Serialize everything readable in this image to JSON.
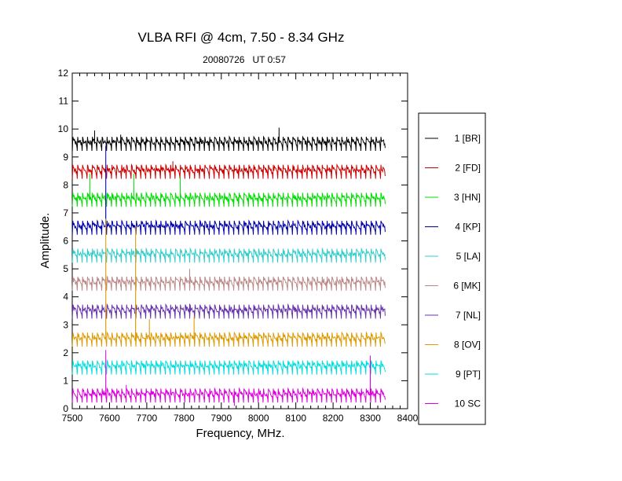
{
  "chart_data": {
    "type": "line",
    "title": "VLBA RFI @ 4cm, 7.50 - 8.34 GHz",
    "subtitle": "20080726   UT 0:57",
    "xlabel": "Frequency, MHz.",
    "ylabel": "Amplitude.",
    "xlim": [
      7500,
      8400
    ],
    "ylim": [
      0,
      12
    ],
    "xticks": [
      7500,
      7600,
      7700,
      7800,
      7900,
      8000,
      8100,
      8200,
      8300,
      8400
    ],
    "yticks": [
      0,
      1,
      2,
      3,
      4,
      5,
      6,
      7,
      8,
      9,
      10,
      11,
      12
    ],
    "x_data_range": [
      7500,
      8340
    ],
    "ripple_channels": 64,
    "legend_position": "right",
    "grid": false,
    "series": [
      {
        "name": "1 [BR]",
        "color": "#000000",
        "baseline": 9.5,
        "spikes": [
          {
            "x": 7560,
            "y": 9.95
          },
          {
            "x": 7630,
            "y": 9.8
          },
          {
            "x": 8055,
            "y": 10.05
          }
        ]
      },
      {
        "name": "2 [FD]",
        "color": "#cc0000",
        "baseline": 8.5,
        "spikes": [
          {
            "x": 7770,
            "y": 8.85
          }
        ]
      },
      {
        "name": "3 [HN]",
        "color": "#00dd00",
        "baseline": 7.5,
        "spikes": [
          {
            "x": 7547,
            "y": 8.4
          },
          {
            "x": 7665,
            "y": 8.4
          },
          {
            "x": 7790,
            "y": 8.3
          }
        ]
      },
      {
        "name": "4 [KP]",
        "color": "#0000aa",
        "baseline": 6.5,
        "spikes": [
          {
            "x": 7590,
            "y": 9.4
          }
        ]
      },
      {
        "name": "5 [LA]",
        "color": "#33cccc",
        "baseline": 5.5,
        "spikes": [
          {
            "x": 7670,
            "y": 5.75
          }
        ]
      },
      {
        "name": "6 [MK]",
        "color": "#bb8888",
        "baseline": 4.5,
        "spikes": [
          {
            "x": 7815,
            "y": 5.0
          }
        ]
      },
      {
        "name": "7 [NL]",
        "color": "#6633aa",
        "baseline": 3.5,
        "spikes": [
          {
            "x": 7815,
            "y": 3.75
          }
        ]
      },
      {
        "name": "8 [OV]",
        "color": "#dd9900",
        "baseline": 2.5,
        "spikes": [
          {
            "x": 7590,
            "y": 6.8
          },
          {
            "x": 7670,
            "y": 6.5
          },
          {
            "x": 7707,
            "y": 3.2
          },
          {
            "x": 7827,
            "y": 3.3
          }
        ]
      },
      {
        "name": "9 [PT]",
        "color": "#00dddd",
        "baseline": 1.5,
        "spikes": []
      },
      {
        "name": "10 SC",
        "color": "#dd00dd",
        "baseline": 0.5,
        "spikes": [
          {
            "x": 7590,
            "y": 2.1
          },
          {
            "x": 7645,
            "y": 0.85
          },
          {
            "x": 7935,
            "y": 0.1
          },
          {
            "x": 8300,
            "y": 1.9
          }
        ]
      }
    ]
  }
}
